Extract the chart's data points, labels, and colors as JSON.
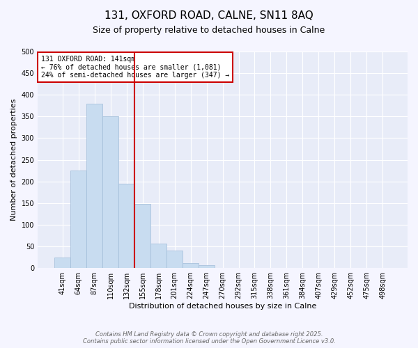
{
  "title": "131, OXFORD ROAD, CALNE, SN11 8AQ",
  "subtitle": "Size of property relative to detached houses in Calne",
  "xlabel": "Distribution of detached houses by size in Calne",
  "ylabel": "Number of detached properties",
  "bar_labels": [
    "41sqm",
    "64sqm",
    "87sqm",
    "110sqm",
    "132sqm",
    "155sqm",
    "178sqm",
    "201sqm",
    "224sqm",
    "247sqm",
    "270sqm",
    "292sqm",
    "315sqm",
    "338sqm",
    "361sqm",
    "384sqm",
    "407sqm",
    "429sqm",
    "452sqm",
    "475sqm",
    "498sqm"
  ],
  "bar_values": [
    25,
    225,
    380,
    350,
    195,
    148,
    57,
    40,
    12,
    6,
    0,
    0,
    0,
    0,
    0,
    0,
    0,
    0,
    0,
    0,
    0
  ],
  "bar_color": "#c8dcf0",
  "bar_edge_color": "#a0bcd8",
  "vline_color": "#cc0000",
  "annotation_text": "131 OXFORD ROAD: 141sqm\n← 76% of detached houses are smaller (1,081)\n24% of semi-detached houses are larger (347) →",
  "annotation_box_color": "#ffffff",
  "annotation_box_edge": "#cc0000",
  "ylim": [
    0,
    500
  ],
  "yticks": [
    0,
    50,
    100,
    150,
    200,
    250,
    300,
    350,
    400,
    450,
    500
  ],
  "footer_line1": "Contains HM Land Registry data © Crown copyright and database right 2025.",
  "footer_line2": "Contains public sector information licensed under the Open Government Licence v3.0.",
  "background_color": "#f5f5ff",
  "plot_bg_color": "#e8ecf8",
  "grid_color": "#ffffff",
  "title_fontsize": 11,
  "subtitle_fontsize": 9,
  "axis_label_fontsize": 8,
  "tick_fontsize": 7,
  "footer_fontsize": 6
}
